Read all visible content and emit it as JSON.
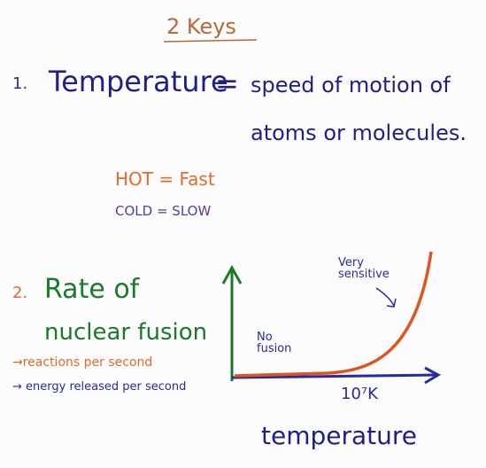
{
  "title": "2 Keys",
  "key1": {
    "number": "1.",
    "term": "Temperature",
    "equals": "=",
    "definition": [
      "speed of motion of",
      "atoms or molecules."
    ],
    "examples": [
      "HOT = Fast",
      "COLD = SLOW"
    ]
  },
  "key2": {
    "number": "2.",
    "term": [
      "Rate of",
      "nuclear fusion"
    ],
    "notes": [
      "→reactions per second",
      "→ energy released per second"
    ],
    "graph": {
      "low_label": "No fusion",
      "high_label": "Very sensitive",
      "threshold_label": "10⁷K",
      "x_axis_label": "temperature"
    }
  }
}
